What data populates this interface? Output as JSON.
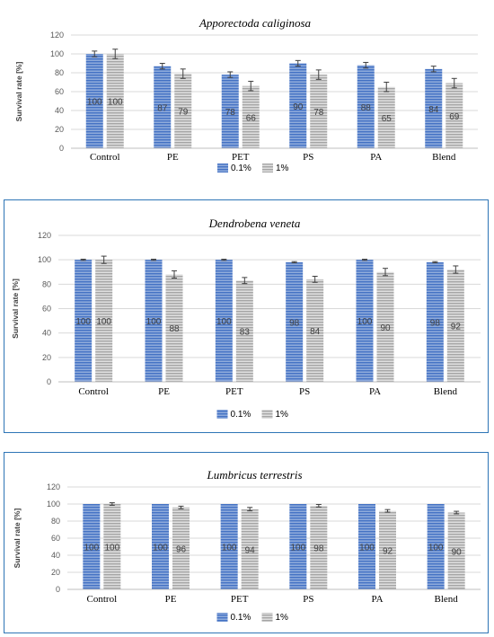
{
  "colors": {
    "series_0_1": "#4472c4",
    "series_1": "#a5a5a5",
    "panel_border": "#2e75b6",
    "grid": "#d9d9d9"
  },
  "chart_data": [
    {
      "type": "bar",
      "title": "Apporectoda caliginosa",
      "ylabel": "Survival rate [%]",
      "xlabel": "",
      "ylim": [
        0,
        120
      ],
      "yticks": [
        0,
        20,
        40,
        60,
        80,
        100,
        120
      ],
      "grid": true,
      "legend_position": "bottom",
      "categories": [
        "Control",
        "PE",
        "PET",
        "PS",
        "PA",
        "Blend"
      ],
      "series": [
        {
          "name": "0.1%",
          "values": [
            100,
            87,
            78,
            90,
            88,
            84
          ],
          "errors": [
            3,
            3,
            3,
            3,
            3,
            3
          ]
        },
        {
          "name": "1%",
          "values": [
            100,
            79,
            66,
            78,
            65,
            69
          ],
          "errors": [
            5,
            5,
            5,
            5,
            5,
            5
          ]
        }
      ]
    },
    {
      "type": "bar",
      "title": "Dendrobena veneta",
      "ylabel": "Survival rate [%]",
      "xlabel": "",
      "ylim": [
        0,
        120
      ],
      "yticks": [
        0,
        20,
        40,
        60,
        80,
        100,
        120
      ],
      "grid": true,
      "legend_position": "bottom",
      "categories": [
        "Control",
        "PE",
        "PET",
        "PS",
        "PA",
        "Blend"
      ],
      "series": [
        {
          "name": "0.1%",
          "values": [
            100,
            100,
            100,
            98,
            100,
            98
          ],
          "errors": [
            0.5,
            0.5,
            0.5,
            0.5,
            0.5,
            0.5
          ]
        },
        {
          "name": "1%",
          "values": [
            100,
            88,
            83,
            84,
            90,
            92
          ],
          "errors": [
            3,
            3,
            2.5,
            2.5,
            3,
            3
          ]
        }
      ]
    },
    {
      "type": "bar",
      "title": "Lumbricus terrestris",
      "ylabel": "Survival rate [%]",
      "xlabel": "",
      "ylim": [
        0,
        120
      ],
      "yticks": [
        0,
        20,
        40,
        60,
        80,
        100,
        120
      ],
      "grid": true,
      "legend_position": "bottom",
      "categories": [
        "Control",
        "PE",
        "PET",
        "PS",
        "PA",
        "Blend"
      ],
      "series": [
        {
          "name": "0.1%",
          "values": [
            100,
            100,
            100,
            100,
            100,
            100
          ],
          "errors": [
            0,
            0,
            0,
            0,
            0,
            0
          ]
        },
        {
          "name": "1%",
          "values": [
            100,
            96,
            94,
            98,
            92,
            90
          ],
          "errors": [
            1.5,
            1.5,
            2,
            1.5,
            1.5,
            1.5
          ]
        }
      ]
    }
  ]
}
